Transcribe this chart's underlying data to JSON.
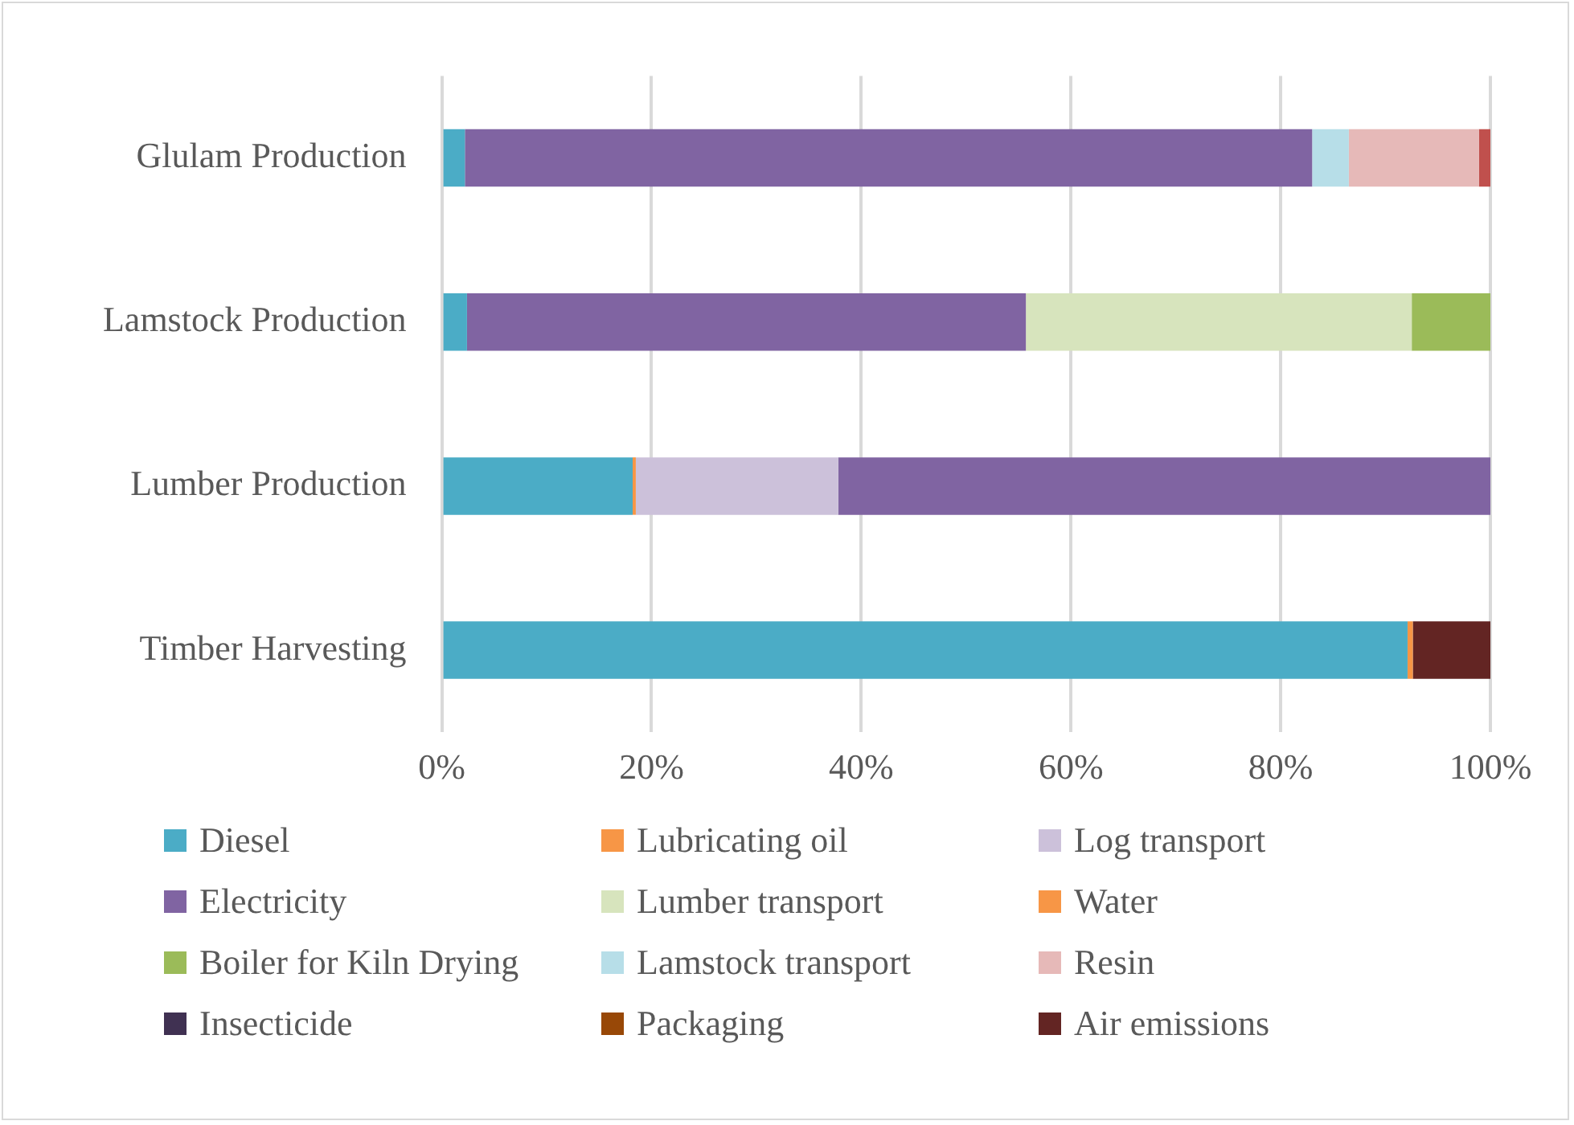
{
  "chart_data": {
    "type": "bar",
    "orientation": "horizontal",
    "stacked": true,
    "categories": [
      "Glulam Production",
      "Lamstock Production",
      "Lumber Production",
      "Timber Harvesting"
    ],
    "series": [
      {
        "name": "Diesel",
        "color": "#4bacc6",
        "values": [
          2.2,
          2.4,
          18.2,
          92.1
        ]
      },
      {
        "name": "Lubricating oil",
        "color": "#f79646",
        "values": [
          0,
          0,
          0.3,
          0.5
        ]
      },
      {
        "name": "Log transport",
        "color": "#ccc1da",
        "values": [
          0,
          0,
          19.3,
          0
        ]
      },
      {
        "name": "Electricity",
        "color": "#8064a2",
        "values": [
          80.8,
          53.3,
          62.2,
          0
        ]
      },
      {
        "name": "Lumber transport",
        "color": "#d7e4bd",
        "values": [
          0,
          36.8,
          0,
          0
        ]
      },
      {
        "name": "Water",
        "color": "#f79646",
        "values": [
          0,
          0,
          0,
          0
        ]
      },
      {
        "name": "Boiler for Kiln Drying",
        "color": "#9bbb59",
        "values": [
          0,
          7.5,
          0,
          0
        ]
      },
      {
        "name": "Lamstock transport",
        "color": "#b7dee8",
        "values": [
          3.5,
          0,
          0,
          0
        ]
      },
      {
        "name": "Resin",
        "color": "#e6b9b8",
        "values": [
          12.4,
          0,
          0,
          0
        ]
      },
      {
        "name": "Insecticide",
        "color": "#403152",
        "values": [
          0,
          0,
          0,
          0
        ]
      },
      {
        "name": "Packaging",
        "color": "#984807",
        "values": [
          0,
          0,
          0,
          0
        ]
      },
      {
        "name": "Air emissions",
        "color": "#632523",
        "values": [
          0,
          0,
          0,
          7.4
        ]
      },
      {
        "color": "#c0504d",
        "values": [
          1.1,
          0,
          0,
          0
        ]
      }
    ],
    "xlim": [
      0,
      100
    ],
    "xticks": [
      {
        "value": 0,
        "label": "0%"
      },
      {
        "value": 20,
        "label": "20%"
      },
      {
        "value": 40,
        "label": "40%"
      },
      {
        "value": 60,
        "label": "60%"
      },
      {
        "value": 80,
        "label": "80%"
      },
      {
        "value": 100,
        "label": "100%"
      }
    ],
    "grid": "x",
    "legend": "bottom"
  }
}
